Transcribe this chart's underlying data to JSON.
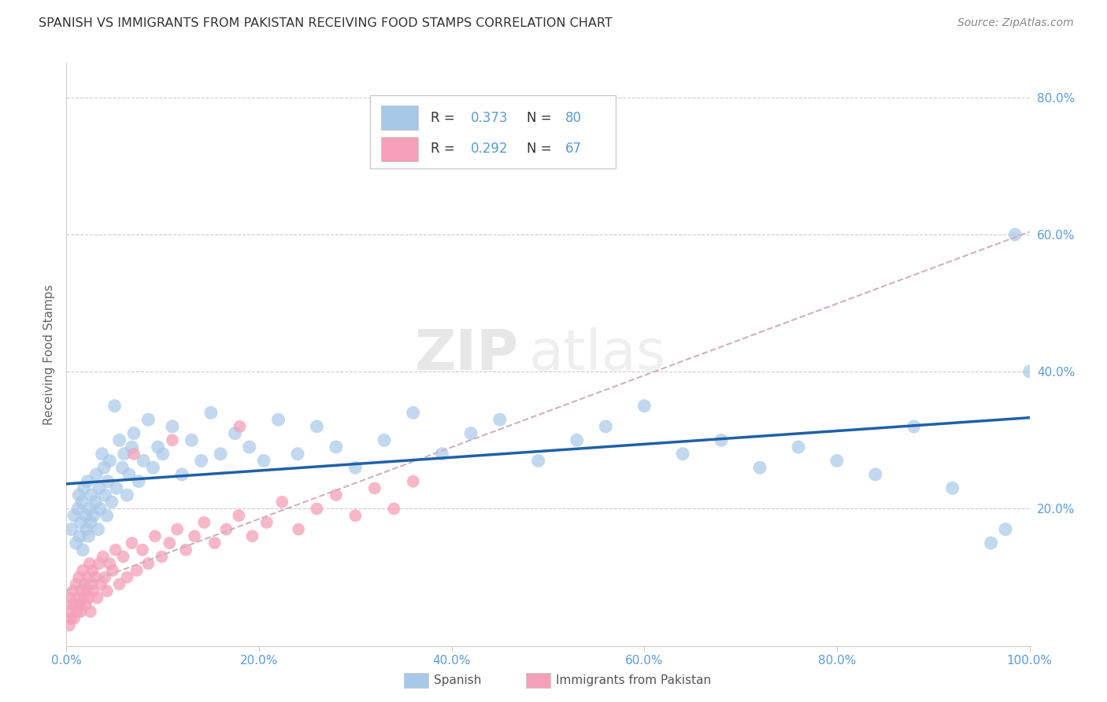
{
  "title": "SPANISH VS IMMIGRANTS FROM PAKISTAN RECEIVING FOOD STAMPS CORRELATION CHART",
  "source": "Source: ZipAtlas.com",
  "tick_color": "#5b9bd5",
  "ylabel": "Receiving Food Stamps",
  "xlim": [
    0,
    1.0
  ],
  "ylim": [
    0,
    0.85
  ],
  "xticks": [
    0.0,
    0.2,
    0.4,
    0.6,
    0.8,
    1.0
  ],
  "xtick_labels": [
    "0.0%",
    "20.0%",
    "40.0%",
    "60.0%",
    "80.0%",
    "100.0%"
  ],
  "yticks": [
    0.2,
    0.4,
    0.6,
    0.8
  ],
  "ytick_labels": [
    "20.0%",
    "40.0%",
    "60.0%",
    "80.0%"
  ],
  "blue_color": "#a8c8e8",
  "pink_color": "#f4a0b8",
  "trendline_blue": "#2060a8",
  "trendline_pink": "#c04040",
  "trendline_dashed_color": "#d0b0c0",
  "watermark_zip": "ZIP",
  "watermark_atlas": "atlas",
  "spanish_x": [
    0.005,
    0.008,
    0.01,
    0.012,
    0.013,
    0.014,
    0.015,
    0.016,
    0.017,
    0.018,
    0.02,
    0.021,
    0.022,
    0.023,
    0.024,
    0.025,
    0.026,
    0.028,
    0.03,
    0.031,
    0.033,
    0.034,
    0.035,
    0.037,
    0.039,
    0.04,
    0.042,
    0.043,
    0.045,
    0.047,
    0.05,
    0.052,
    0.055,
    0.058,
    0.06,
    0.063,
    0.065,
    0.068,
    0.07,
    0.075,
    0.08,
    0.085,
    0.09,
    0.095,
    0.1,
    0.11,
    0.12,
    0.13,
    0.14,
    0.15,
    0.16,
    0.175,
    0.19,
    0.205,
    0.22,
    0.24,
    0.26,
    0.28,
    0.3,
    0.33,
    0.36,
    0.39,
    0.42,
    0.45,
    0.49,
    0.53,
    0.56,
    0.6,
    0.64,
    0.68,
    0.72,
    0.76,
    0.8,
    0.84,
    0.88,
    0.92,
    0.96,
    0.975,
    0.985,
    1.0
  ],
  "spanish_y": [
    0.17,
    0.19,
    0.15,
    0.2,
    0.22,
    0.16,
    0.18,
    0.21,
    0.14,
    0.23,
    0.19,
    0.17,
    0.24,
    0.16,
    0.2,
    0.18,
    0.22,
    0.19,
    0.21,
    0.25,
    0.17,
    0.23,
    0.2,
    0.28,
    0.26,
    0.22,
    0.19,
    0.24,
    0.27,
    0.21,
    0.35,
    0.23,
    0.3,
    0.26,
    0.28,
    0.22,
    0.25,
    0.29,
    0.31,
    0.24,
    0.27,
    0.33,
    0.26,
    0.29,
    0.28,
    0.32,
    0.25,
    0.3,
    0.27,
    0.34,
    0.28,
    0.31,
    0.29,
    0.27,
    0.33,
    0.28,
    0.32,
    0.29,
    0.26,
    0.3,
    0.34,
    0.28,
    0.31,
    0.33,
    0.27,
    0.3,
    0.32,
    0.35,
    0.28,
    0.3,
    0.26,
    0.29,
    0.27,
    0.25,
    0.32,
    0.23,
    0.15,
    0.17,
    0.6,
    0.4
  ],
  "pakistan_x": [
    0.002,
    0.003,
    0.004,
    0.005,
    0.006,
    0.007,
    0.008,
    0.009,
    0.01,
    0.011,
    0.012,
    0.013,
    0.014,
    0.015,
    0.016,
    0.017,
    0.018,
    0.019,
    0.02,
    0.021,
    0.022,
    0.023,
    0.024,
    0.025,
    0.026,
    0.027,
    0.028,
    0.03,
    0.032,
    0.034,
    0.036,
    0.038,
    0.04,
    0.042,
    0.045,
    0.048,
    0.051,
    0.055,
    0.059,
    0.063,
    0.068,
    0.073,
    0.079,
    0.085,
    0.092,
    0.099,
    0.107,
    0.115,
    0.124,
    0.133,
    0.143,
    0.154,
    0.166,
    0.179,
    0.193,
    0.208,
    0.224,
    0.241,
    0.26,
    0.28,
    0.3,
    0.32,
    0.34,
    0.36,
    0.18,
    0.11,
    0.07
  ],
  "pakistan_y": [
    0.05,
    0.03,
    0.07,
    0.04,
    0.06,
    0.08,
    0.04,
    0.06,
    0.09,
    0.05,
    0.07,
    0.1,
    0.06,
    0.05,
    0.08,
    0.11,
    0.07,
    0.09,
    0.06,
    0.08,
    0.1,
    0.07,
    0.12,
    0.05,
    0.09,
    0.11,
    0.08,
    0.1,
    0.07,
    0.12,
    0.09,
    0.13,
    0.1,
    0.08,
    0.12,
    0.11,
    0.14,
    0.09,
    0.13,
    0.1,
    0.15,
    0.11,
    0.14,
    0.12,
    0.16,
    0.13,
    0.15,
    0.17,
    0.14,
    0.16,
    0.18,
    0.15,
    0.17,
    0.19,
    0.16,
    0.18,
    0.21,
    0.17,
    0.2,
    0.22,
    0.19,
    0.23,
    0.2,
    0.24,
    0.32,
    0.3,
    0.28
  ]
}
